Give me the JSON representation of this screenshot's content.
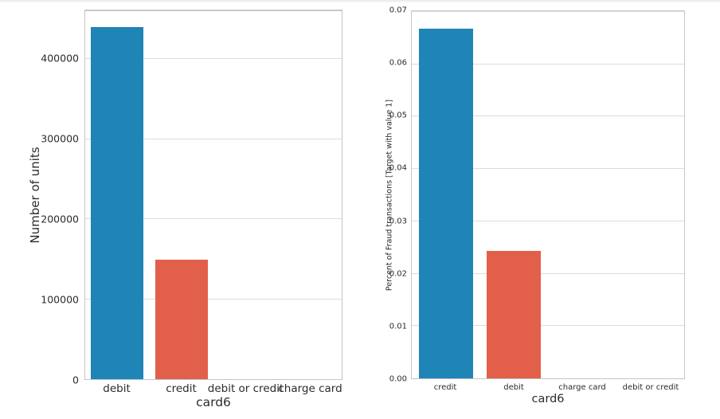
{
  "figure": {
    "background": "#ffffff",
    "grid_color": "#dcdcdc",
    "axis_border_color": "#c6c6c6",
    "text_color": "#2b2b2b"
  },
  "chart_data": [
    {
      "type": "bar",
      "title": "",
      "xlabel": "card6",
      "ylabel": "Number of units",
      "categories": [
        "debit",
        "credit",
        "debit or credit",
        "charge card"
      ],
      "values": [
        439938,
        148986,
        30,
        15
      ],
      "bar_colors": [
        "#1f84b6",
        "#e2604a",
        "#1f84b6",
        "#e2604a"
      ],
      "ylim": [
        0,
        460000
      ],
      "yticks": [
        0,
        100000,
        200000,
        300000,
        400000
      ],
      "ytick_labels": [
        "0",
        "100000",
        "200000",
        "300000",
        "400000"
      ],
      "bar_width_fraction": 0.82,
      "grid": "horizontal",
      "legend_position": "none"
    },
    {
      "type": "bar",
      "title": "",
      "xlabel": "card6",
      "ylabel": "Percent of Fraud transactions [Target with value 1]",
      "categories": [
        "credit",
        "debit",
        "charge card",
        "debit or credit"
      ],
      "values": [
        0.0668,
        0.0243,
        0.0,
        0.0
      ],
      "bar_colors": [
        "#1f84b6",
        "#e2604a",
        "#1f84b6",
        "#e2604a"
      ],
      "ylim": [
        0,
        0.07
      ],
      "yticks": [
        0,
        0.01,
        0.02,
        0.03,
        0.04,
        0.05,
        0.06,
        0.07
      ],
      "ytick_labels": [
        "0.00",
        "0.01",
        "0.02",
        "0.03",
        "0.04",
        "0.05",
        "0.06",
        "0.07"
      ],
      "bar_width_fraction": 0.8,
      "grid": "horizontal",
      "legend_position": "none"
    }
  ]
}
